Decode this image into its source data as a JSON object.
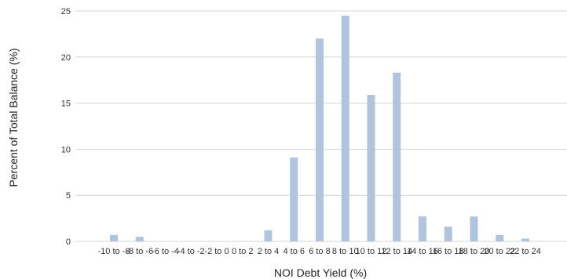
{
  "chart_data": {
    "type": "bar",
    "title": "",
    "xlabel": "NOI Debt Yield (%)",
    "ylabel": "Percent of Total Balance (%)",
    "ylim": [
      0,
      25
    ],
    "yticks": [
      0,
      5,
      10,
      15,
      20,
      25
    ],
    "grid": true,
    "legend": "none",
    "categories": [
      "-10 to -8",
      "-8 to -6",
      "-6 to -4",
      "-4 to -2",
      "-2 to 0",
      "0 to 2",
      "2 to 4",
      "4 to 6",
      "6 to 8",
      "8 to 10",
      "10 to 12",
      "12 to 14",
      "14 to 16",
      "16 to 18",
      "18 to 20",
      "20 to 22",
      "22 to 24"
    ],
    "values": [
      0.7,
      0.5,
      0,
      0,
      0,
      0,
      1.2,
      9.1,
      22.0,
      24.5,
      15.9,
      18.3,
      2.7,
      1.6,
      2.7,
      0.7,
      0.3
    ]
  },
  "colors": {
    "bar": "#b0c4de",
    "grid": "#d3d3d3",
    "text": "#333333"
  }
}
